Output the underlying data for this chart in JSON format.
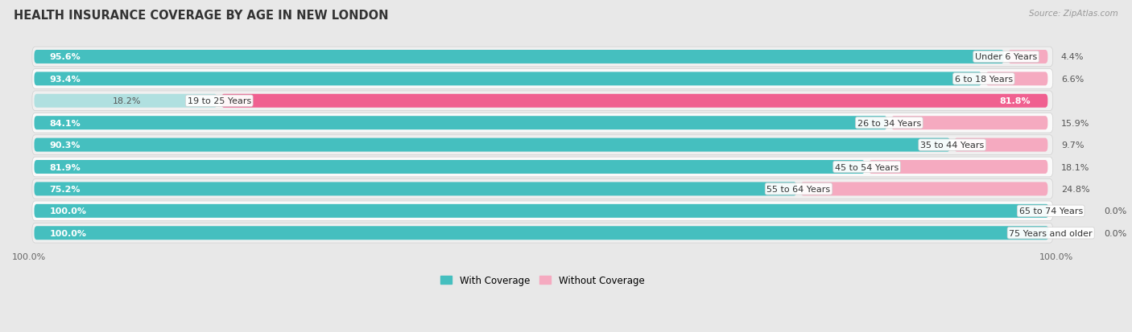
{
  "title": "HEALTH INSURANCE COVERAGE BY AGE IN NEW LONDON",
  "source": "Source: ZipAtlas.com",
  "categories": [
    "Under 6 Years",
    "6 to 18 Years",
    "19 to 25 Years",
    "26 to 34 Years",
    "35 to 44 Years",
    "45 to 54 Years",
    "55 to 64 Years",
    "65 to 74 Years",
    "75 Years and older"
  ],
  "with_coverage": [
    95.6,
    93.4,
    18.2,
    84.1,
    90.3,
    81.9,
    75.2,
    100.0,
    100.0
  ],
  "without_coverage": [
    4.4,
    6.6,
    81.8,
    15.9,
    9.7,
    18.1,
    24.8,
    0.0,
    0.0
  ],
  "color_with": "#45bfbf",
  "color_without_big": "#f06090",
  "color_without_small": "#f5aac0",
  "color_with_light": "#b0e0e0",
  "title_fontsize": 10.5,
  "label_fontsize": 8.0,
  "value_fontsize": 8.0,
  "tick_fontsize": 8.0,
  "legend_fontsize": 8.5,
  "bg_even": "#f0f0f0",
  "bg_odd": "#fafafa"
}
